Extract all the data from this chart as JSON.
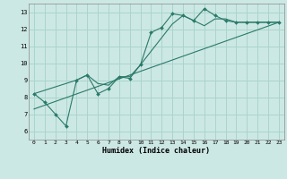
{
  "xlabel": "Humidex (Indice chaleur)",
  "bg_color": "#cce8e4",
  "grid_color": "#aad4cc",
  "line_color": "#2a7a6a",
  "xlim": [
    -0.5,
    23.5
  ],
  "ylim": [
    5.5,
    13.5
  ],
  "xticks": [
    0,
    1,
    2,
    3,
    4,
    5,
    6,
    7,
    8,
    9,
    10,
    11,
    12,
    13,
    14,
    15,
    16,
    17,
    18,
    19,
    20,
    21,
    22,
    23
  ],
  "yticks": [
    6,
    7,
    8,
    9,
    10,
    11,
    12,
    13
  ],
  "main_x": [
    0,
    1,
    2,
    3,
    4,
    5,
    6,
    7,
    8,
    9,
    10,
    11,
    12,
    13,
    14,
    15,
    16,
    17,
    18,
    19,
    20,
    21,
    22,
    23
  ],
  "main_y": [
    8.2,
    7.7,
    7.0,
    6.3,
    9.0,
    9.3,
    8.2,
    8.5,
    9.2,
    9.1,
    9.9,
    11.8,
    12.1,
    12.9,
    12.8,
    12.5,
    13.2,
    12.8,
    12.5,
    12.4,
    12.4,
    12.4,
    12.4,
    12.4
  ],
  "line2_x": [
    0,
    4,
    5,
    6,
    7,
    8,
    9,
    10,
    11,
    12,
    13,
    14,
    15,
    16,
    17,
    18,
    19,
    20,
    21,
    22,
    23
  ],
  "line2_y": [
    8.2,
    9.0,
    9.3,
    8.8,
    8.7,
    9.2,
    9.2,
    9.9,
    10.7,
    11.5,
    12.3,
    12.8,
    12.5,
    12.2,
    12.6,
    12.6,
    12.4,
    12.4,
    12.4,
    12.4,
    12.4
  ],
  "line3_x": [
    0,
    23
  ],
  "line3_y": [
    7.3,
    12.4
  ]
}
